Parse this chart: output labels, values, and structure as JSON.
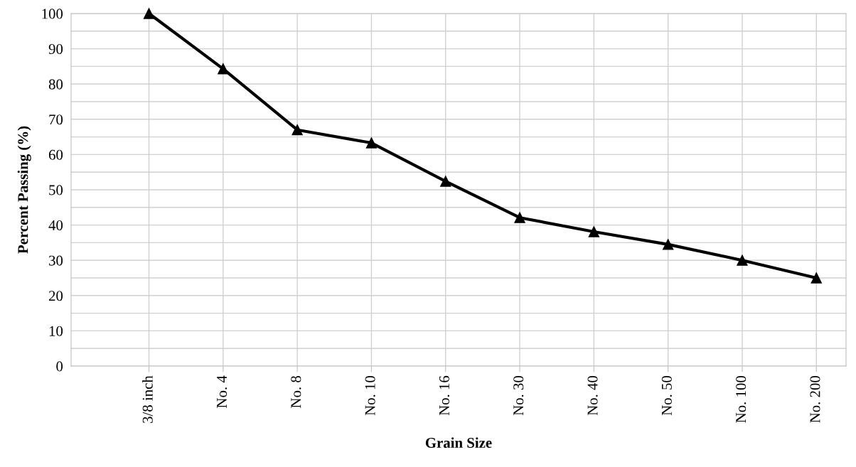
{
  "chart_data": {
    "type": "line",
    "xlabel": "Grain Size",
    "ylabel": "Percent Passing (%)",
    "categories": [
      "3/8 inch",
      "No. 4",
      "No. 8",
      "No. 10",
      "No. 16",
      "No. 30",
      "No. 40",
      "No. 50",
      "No. 100",
      "No. 200"
    ],
    "series": [
      {
        "color": "#000000",
        "values": [
          100,
          84.3,
          67,
          63.3,
          52.4,
          42.1,
          38.1,
          34.5,
          30,
          25
        ]
      }
    ],
    "ylim": [
      0,
      100
    ],
    "yticks": [
      0,
      {
        "value": 5,
        "label": null
      },
      10,
      {
        "value": 15,
        "label": null
      },
      20,
      {
        "value": 25,
        "label": null
      },
      30,
      {
        "value": 35,
        "label": null
      },
      40,
      {
        "value": 45,
        "label": null
      },
      50,
      {
        "value": 55,
        "label": null
      },
      60,
      {
        "value": 65,
        "label": null
      },
      70,
      {
        "value": 75,
        "label": null
      },
      80,
      {
        "value": 85,
        "label": null
      },
      90,
      {
        "value": 95,
        "label": null
      },
      100
    ],
    "grid": true,
    "marker": "triangle",
    "line_style": "solid"
  }
}
